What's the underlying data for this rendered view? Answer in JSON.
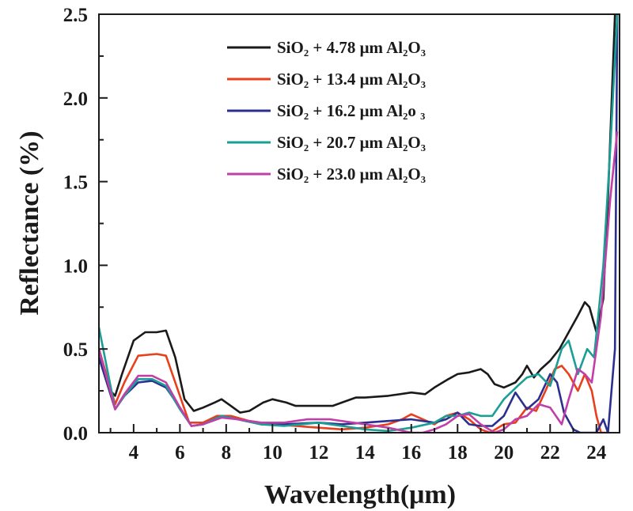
{
  "chart_data": {
    "type": "line",
    "title": "",
    "xlabel": "Wavelength(μm)",
    "ylabel": "Reflectance (%)",
    "xlim": [
      2.5,
      25
    ],
    "ylim": [
      0,
      2.5
    ],
    "xticks": [
      4,
      6,
      8,
      10,
      12,
      14,
      16,
      18,
      20,
      22,
      24
    ],
    "xtick_labels": [
      "4",
      "6",
      "8",
      "10",
      "12",
      "14",
      "16",
      "18",
      "20",
      "22",
      "24"
    ],
    "yticks": [
      0,
      0.5,
      1.0,
      1.5,
      2.0,
      2.5
    ],
    "ytick_labels": [
      "0.0",
      "0.5",
      "1.0",
      "1.5",
      "2.0",
      "2.5"
    ],
    "grid": false,
    "legend_position": "top-center",
    "series": [
      {
        "name": "SiO₂ + 4.78 μm Al₂O₃",
        "color": "#1a1a1a",
        "x": [
          2.5,
          3.0,
          3.2,
          3.5,
          4.0,
          4.5,
          5.0,
          5.4,
          5.8,
          6.2,
          6.6,
          7.0,
          7.5,
          7.8,
          8.2,
          8.6,
          9.0,
          9.6,
          10.0,
          10.6,
          11.0,
          12.0,
          12.6,
          13.0,
          13.6,
          14.0,
          15.0,
          16.0,
          16.6,
          17.0,
          17.6,
          18.0,
          18.5,
          19.0,
          19.3,
          19.6,
          20.0,
          20.5,
          20.8,
          21.0,
          21.3,
          21.6,
          22.0,
          22.4,
          22.8,
          23.2,
          23.5,
          23.7,
          24.0,
          24.3,
          24.5,
          24.8
        ],
        "y": [
          0.5,
          0.25,
          0.22,
          0.35,
          0.55,
          0.6,
          0.6,
          0.61,
          0.45,
          0.2,
          0.13,
          0.15,
          0.18,
          0.2,
          0.16,
          0.12,
          0.13,
          0.18,
          0.2,
          0.18,
          0.16,
          0.16,
          0.16,
          0.18,
          0.21,
          0.21,
          0.22,
          0.24,
          0.23,
          0.27,
          0.32,
          0.35,
          0.36,
          0.38,
          0.35,
          0.29,
          0.27,
          0.3,
          0.35,
          0.4,
          0.33,
          0.38,
          0.43,
          0.5,
          0.6,
          0.7,
          0.78,
          0.75,
          0.6,
          0.8,
          1.4,
          2.5
        ]
      },
      {
        "name": "SiO₂ + 13.4 μm Al₂O₃",
        "color": "#e8401c",
        "x": [
          2.5,
          3.2,
          3.6,
          4.2,
          5.0,
          5.4,
          5.8,
          6.4,
          7.0,
          7.6,
          8.2,
          9.0,
          10.0,
          11.0,
          12.0,
          13.0,
          14.0,
          15.0,
          15.6,
          16.0,
          16.5,
          17.0,
          17.5,
          18.0,
          18.5,
          19.0,
          19.4,
          20.0,
          20.5,
          21.0,
          21.4,
          21.8,
          22.2,
          22.5,
          22.8,
          23.2,
          23.5,
          23.8,
          24.0,
          24.2,
          24.5
        ],
        "y": [
          0.5,
          0.17,
          0.3,
          0.46,
          0.47,
          0.46,
          0.3,
          0.06,
          0.06,
          0.1,
          0.1,
          0.07,
          0.05,
          0.04,
          0.03,
          0.02,
          0.03,
          0.05,
          0.08,
          0.11,
          0.08,
          0.05,
          0.1,
          0.12,
          0.08,
          0.02,
          0.0,
          0.05,
          0.06,
          0.15,
          0.13,
          0.25,
          0.38,
          0.4,
          0.35,
          0.25,
          0.35,
          0.25,
          0.1,
          0.0,
          0.0
        ]
      },
      {
        "name": "SiO₂ + 16.2 μm Al₂o ₃",
        "color": "#2b2f8f",
        "x": [
          2.5,
          3.2,
          3.6,
          4.2,
          4.8,
          5.4,
          6.0,
          6.5,
          7.0,
          7.8,
          8.5,
          9.5,
          10.5,
          12.0,
          13.0,
          14.0,
          15.0,
          16.0,
          17.0,
          17.5,
          18.0,
          18.5,
          19.0,
          19.5,
          20.0,
          20.5,
          21.0,
          21.5,
          22.0,
          22.3,
          22.6,
          23.0,
          23.3,
          24.0,
          24.3,
          24.5,
          24.8,
          24.9
        ],
        "y": [
          0.45,
          0.14,
          0.22,
          0.3,
          0.31,
          0.27,
          0.15,
          0.04,
          0.05,
          0.1,
          0.08,
          0.05,
          0.05,
          0.06,
          0.05,
          0.06,
          0.07,
          0.08,
          0.06,
          0.08,
          0.12,
          0.05,
          0.04,
          0.04,
          0.1,
          0.24,
          0.14,
          0.2,
          0.35,
          0.3,
          0.12,
          0.02,
          0.0,
          0.0,
          0.08,
          0.0,
          0.5,
          2.5
        ]
      },
      {
        "name": "SiO₂ + 20.7 μm Al₂O₃",
        "color": "#1a9e96",
        "x": [
          2.5,
          3.2,
          3.6,
          4.2,
          4.8,
          5.4,
          6.0,
          6.5,
          7.0,
          7.8,
          8.5,
          9.5,
          10.5,
          12.0,
          13.0,
          14.0,
          15.0,
          16.0,
          17.0,
          17.5,
          18.0,
          18.5,
          19.0,
          19.5,
          20.0,
          20.6,
          21.0,
          21.5,
          22.0,
          22.5,
          22.8,
          23.2,
          23.6,
          23.9,
          24.3,
          24.6,
          24.9
        ],
        "y": [
          0.63,
          0.14,
          0.22,
          0.32,
          0.32,
          0.28,
          0.14,
          0.04,
          0.05,
          0.1,
          0.08,
          0.05,
          0.04,
          0.06,
          0.04,
          0.02,
          0.01,
          0.03,
          0.06,
          0.1,
          0.1,
          0.12,
          0.1,
          0.1,
          0.2,
          0.28,
          0.33,
          0.35,
          0.28,
          0.5,
          0.55,
          0.35,
          0.5,
          0.45,
          1.0,
          1.7,
          2.5
        ]
      },
      {
        "name": "SiO₂ + 23.0 μm Al₂O₃",
        "color": "#c040a8",
        "x": [
          2.5,
          3.2,
          3.6,
          4.2,
          4.8,
          5.4,
          6.0,
          6.5,
          7.0,
          7.8,
          8.5,
          9.5,
          10.5,
          11.5,
          12.5,
          13.5,
          14.0,
          15.0,
          16.0,
          16.5,
          17.0,
          17.5,
          18.0,
          18.5,
          19.0,
          19.6,
          20.0,
          20.5,
          21.0,
          21.5,
          22.0,
          22.5,
          22.8,
          23.2,
          23.5,
          23.8,
          24.2,
          24.6,
          24.9
        ],
        "y": [
          0.5,
          0.14,
          0.23,
          0.34,
          0.34,
          0.3,
          0.15,
          0.04,
          0.05,
          0.09,
          0.08,
          0.06,
          0.06,
          0.08,
          0.08,
          0.06,
          0.05,
          0.03,
          0.0,
          0.0,
          0.02,
          0.05,
          0.1,
          0.11,
          0.05,
          0.0,
          0.02,
          0.08,
          0.1,
          0.17,
          0.15,
          0.05,
          0.2,
          0.38,
          0.35,
          0.3,
          0.7,
          1.4,
          1.8
        ]
      }
    ]
  }
}
